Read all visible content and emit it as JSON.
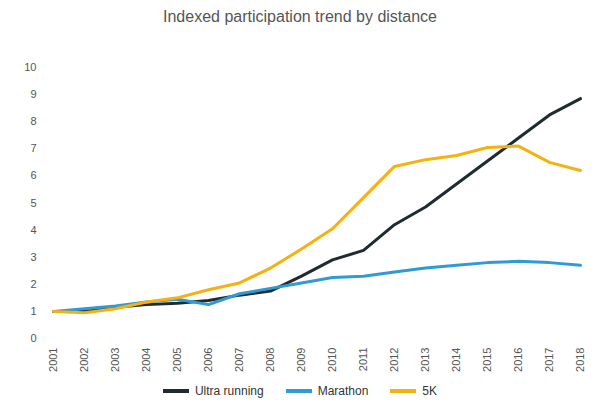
{
  "chart_data": {
    "type": "line",
    "title": "Indexed participation trend by distance",
    "categories": [
      "2001",
      "2002",
      "2003",
      "2004",
      "2005",
      "2006",
      "2007",
      "2008",
      "2009",
      "2010",
      "2011",
      "2012",
      "2013",
      "2014",
      "2015",
      "2016",
      "2017",
      "2018"
    ],
    "series": [
      {
        "name": "Ultra running",
        "color": "#1f2b2e",
        "values": [
          1.0,
          1.0,
          1.15,
          1.25,
          1.3,
          1.4,
          1.6,
          1.75,
          2.3,
          2.9,
          3.25,
          4.2,
          4.85,
          5.7,
          6.55,
          7.4,
          8.25,
          8.85
        ]
      },
      {
        "name": "Marathon",
        "color": "#2f9bd6",
        "values": [
          1.0,
          1.1,
          1.2,
          1.35,
          1.45,
          1.25,
          1.65,
          1.85,
          2.05,
          2.25,
          2.3,
          2.45,
          2.6,
          2.7,
          2.8,
          2.85,
          2.8,
          2.7
        ]
      },
      {
        "name": "5K",
        "color": "#f5b10f",
        "values": [
          1.0,
          0.95,
          1.1,
          1.35,
          1.5,
          1.8,
          2.05,
          2.6,
          3.3,
          4.05,
          5.2,
          6.35,
          6.6,
          6.75,
          7.05,
          7.1,
          6.5,
          6.2
        ]
      }
    ],
    "ylim": [
      0,
      10
    ],
    "yticks": [
      0,
      1,
      2,
      3,
      4,
      5,
      6,
      7,
      8,
      9,
      10
    ],
    "grid": false,
    "legend": "bottom"
  }
}
